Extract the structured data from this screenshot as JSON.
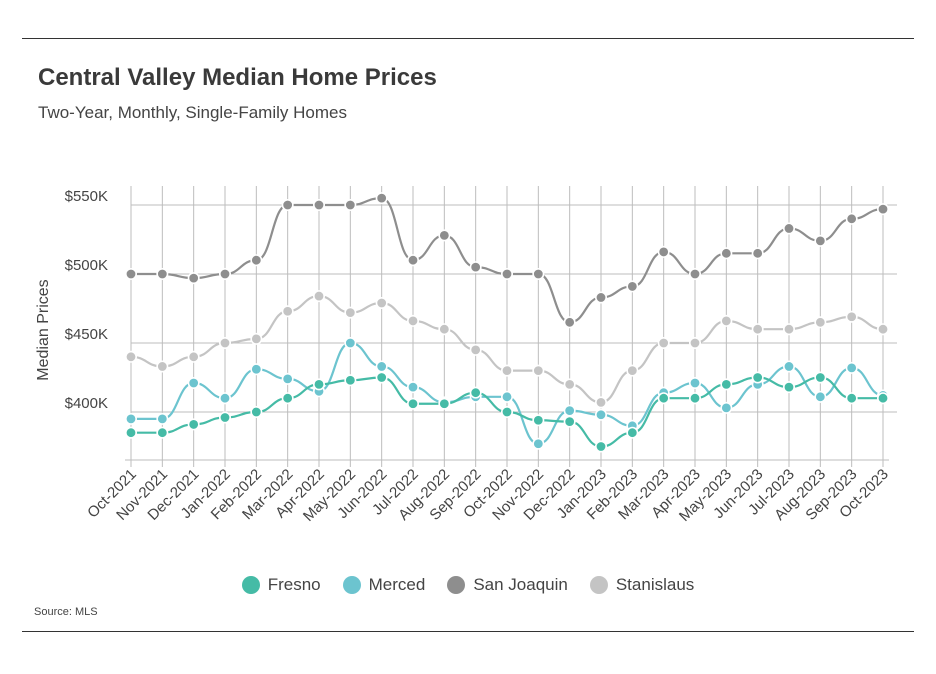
{
  "title": "Central Valley Median Home Prices",
  "subtitle": "Two-Year, Monthly, Single-Family Homes",
  "source": "Source: MLS",
  "chart_data": {
    "type": "line",
    "title": "Central Valley Median Home Prices",
    "subtitle": "Two-Year, Monthly, Single-Family Homes",
    "xlabel": "",
    "ylabel": "Median Prices",
    "ylim": [
      360000,
      555000
    ],
    "yticks": [
      400000,
      450000,
      500000,
      550000
    ],
    "ytick_labels": [
      "$400K",
      "$450K",
      "$500K",
      "$550K"
    ],
    "grid": true,
    "legend_position": "bottom-center",
    "categories": [
      "Oct-2021",
      "Nov-2021",
      "Dec-2021",
      "Jan-2022",
      "Feb-2022",
      "Mar-2022",
      "Apr-2022",
      "May-2022",
      "Jun-2022",
      "Jul-2022",
      "Aug-2022",
      "Sep-2022",
      "Oct-2022",
      "Nov-2022",
      "Dec-2022",
      "Jan-2023",
      "Feb-2023",
      "Mar-2023",
      "Apr-2023",
      "May-2023",
      "Jun-2023",
      "Jul-2023",
      "Aug-2023",
      "Sep-2023",
      "Oct-2023"
    ],
    "series": [
      {
        "name": "Fresno",
        "color": "#45bba6",
        "values": [
          385000,
          385000,
          391000,
          396000,
          400000,
          410000,
          420000,
          423000,
          425000,
          406000,
          406000,
          414000,
          400000,
          394000,
          393000,
          375000,
          385000,
          410000,
          410000,
          420000,
          425000,
          418000,
          425000,
          410000,
          410000
        ]
      },
      {
        "name": "Merced",
        "color": "#6cc4cf",
        "values": [
          395000,
          395000,
          421000,
          410000,
          431000,
          424000,
          415000,
          450000,
          433000,
          418000,
          407000,
          411000,
          411000,
          377000,
          401000,
          398000,
          390000,
          414000,
          421000,
          403000,
          420000,
          433000,
          411000,
          432000,
          412000
        ]
      },
      {
        "name": "San Joaquin",
        "color": "#8e8e8e",
        "values": [
          500000,
          500000,
          497000,
          500000,
          510000,
          550000,
          550000,
          550000,
          555000,
          510000,
          528000,
          505000,
          500000,
          500000,
          465000,
          483000,
          491000,
          516000,
          500000,
          515000,
          515000,
          533000,
          524000,
          540000,
          547000
        ]
      },
      {
        "name": "Stanislaus",
        "color": "#c4c4c4",
        "values": [
          440000,
          433000,
          440000,
          450000,
          453000,
          473000,
          484000,
          472000,
          479000,
          466000,
          460000,
          445000,
          430000,
          430000,
          420000,
          407000,
          430000,
          450000,
          450000,
          466000,
          460000,
          460000,
          465000,
          469000,
          460000
        ]
      }
    ]
  }
}
